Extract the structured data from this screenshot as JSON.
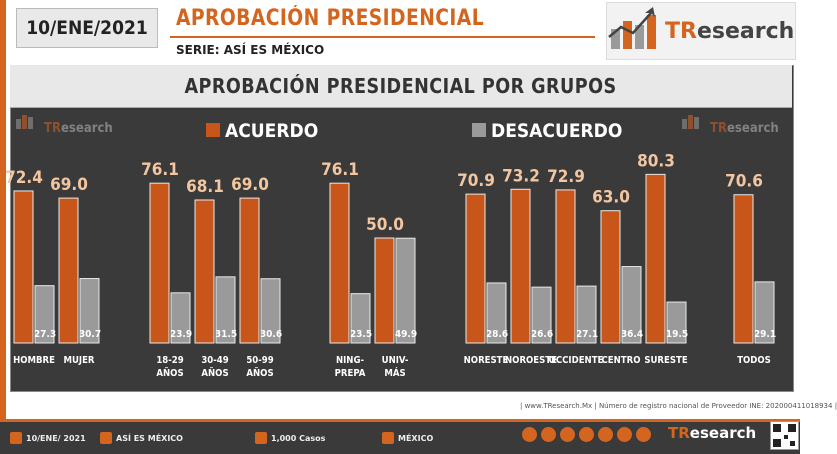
{
  "header": {
    "date": "10/ENE/2021",
    "title": "APROBACIÓN PRESIDENCIAL",
    "subtitle": "SERIE: ASÍ ES MÉXICO",
    "brand_prefix": "TR",
    "brand_suffix": "esearch"
  },
  "chart_data": {
    "type": "bar",
    "title": "APROBACIÓN PRESIDENCIAL POR GRUPOS",
    "legend_position": "top",
    "ylim": [
      0,
      100
    ],
    "grid": false,
    "categories": [
      "HOMBRE",
      "MUJER",
      "18-29 AÑOS",
      "30-49 AÑOS",
      "50-99 AÑOS",
      "NING-PREPA",
      "UNIV-MÁS",
      "NORESTE",
      "NOROESTE",
      "OCCIDENTE",
      "CENTRO",
      "SURESTE",
      "TODOS"
    ],
    "category_lines": [
      [
        "HOMBRE"
      ],
      [
        "MUJER"
      ],
      [
        "18-29",
        "AÑOS"
      ],
      [
        "30-49",
        "AÑOS"
      ],
      [
        "50-99",
        "AÑOS"
      ],
      [
        "NING-",
        "PREPA"
      ],
      [
        "UNIV-",
        "MÁS"
      ],
      [
        "NORESTE"
      ],
      [
        "NOROESTE"
      ],
      [
        "OCCIDENTE"
      ],
      [
        "CENTRO"
      ],
      [
        "SURESTE"
      ],
      [
        "TODOS"
      ]
    ],
    "series": [
      {
        "name": "ACUERDO",
        "values": [
          72.4,
          69.0,
          76.1,
          68.1,
          69.0,
          76.1,
          50.0,
          70.9,
          73.2,
          72.9,
          63.0,
          80.3,
          70.6
        ]
      },
      {
        "name": "DESACUERDO",
        "values": [
          27.3,
          30.7,
          23.9,
          31.5,
          30.6,
          23.5,
          49.9,
          28.6,
          26.6,
          27.1,
          36.4,
          19.5,
          29.1
        ]
      }
    ]
  },
  "colors": {
    "acuerdo": "#c8561a",
    "desacuerdo": "#9a9a9a",
    "acuerdo_label": "#f3c6a2",
    "panel": "#3a3a3a",
    "accent": "#d4651f"
  },
  "footnote": "| www.TResearch.Mx | Número de registro nacional de Proveedor INE: 202000411018934 |",
  "footer": {
    "date": "10/ENE/ 2021",
    "series": "ASÍ ES MÉXICO",
    "cases": "1,000 Casos",
    "country": "MÉXICO",
    "brand_prefix": "TR",
    "brand_suffix": "esearch"
  }
}
